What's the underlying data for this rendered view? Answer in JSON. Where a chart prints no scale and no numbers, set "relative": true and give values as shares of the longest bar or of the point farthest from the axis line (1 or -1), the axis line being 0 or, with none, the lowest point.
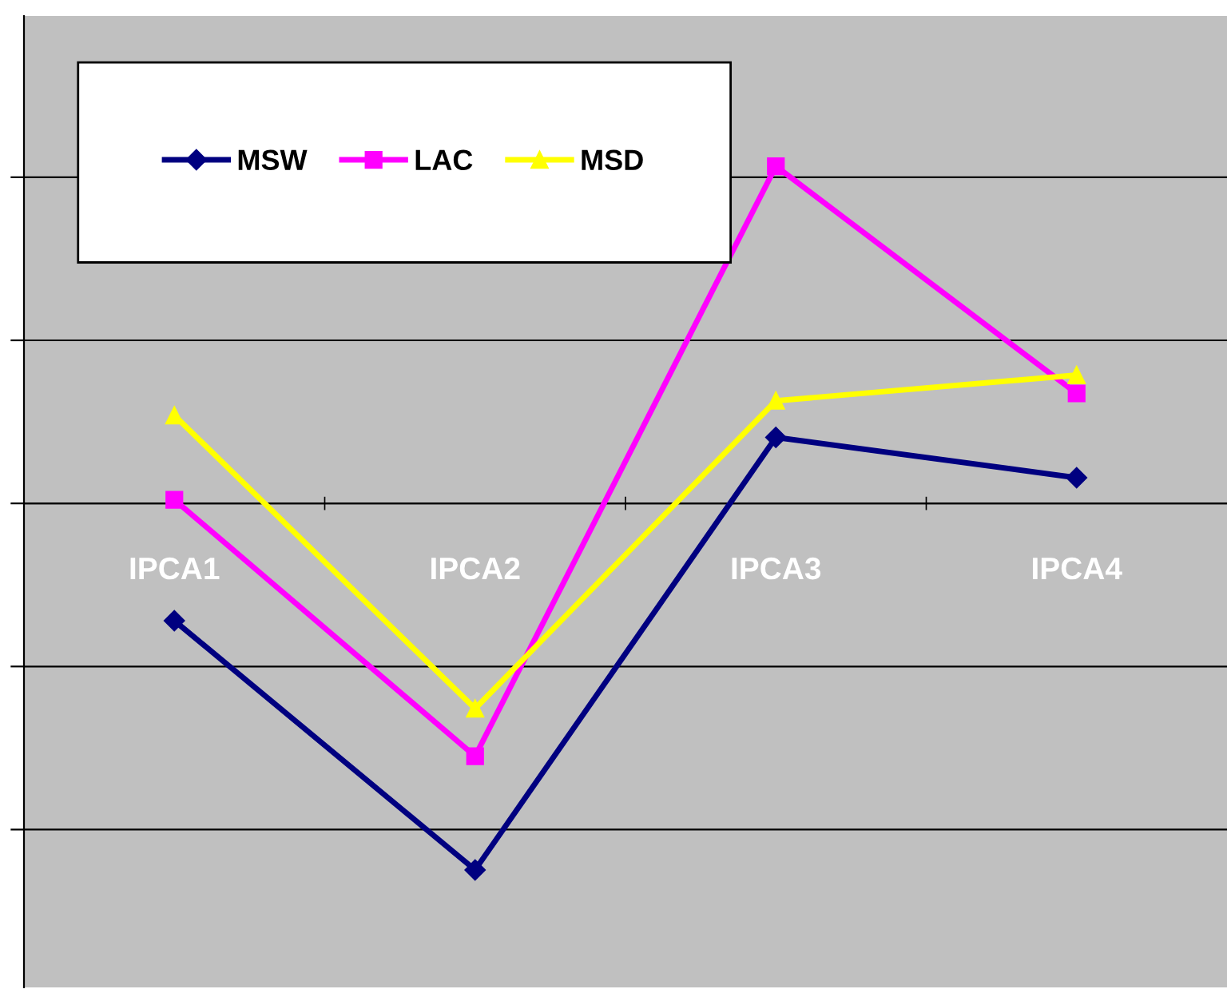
{
  "chart_data": {
    "type": "line",
    "relative": true,
    "categories": [
      "IPCA1",
      "IPCA2",
      "IPCA3",
      "IPCA4"
    ],
    "series": [
      {
        "name": "MSW",
        "color": "#000080",
        "marker": "diamond",
        "values": [
          -0.32,
          -1,
          0.18,
          0.07
        ]
      },
      {
        "name": "LAC",
        "color": "#ff00ff",
        "marker": "square",
        "values": [
          0.01,
          -0.69,
          0.92,
          0.3
        ]
      },
      {
        "name": "MSD",
        "color": "#ffff00",
        "marker": "triangle",
        "values": [
          0.24,
          -0.56,
          0.28,
          0.35
        ]
      }
    ],
    "grid": "y",
    "legend": "top left"
  }
}
